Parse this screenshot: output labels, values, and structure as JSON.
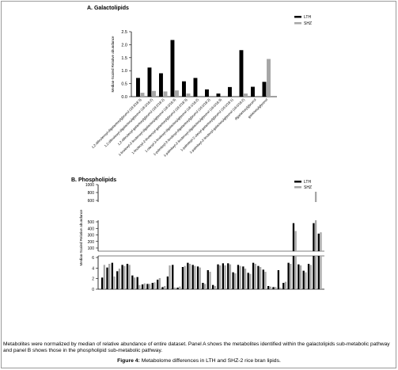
{
  "chart_data": [
    {
      "type": "bar",
      "title": "A. Galactolipids",
      "ylabel": "Median-Scaled Relative abundance",
      "ylim": [
        0,
        2.5
      ],
      "yticks": [
        "0.0",
        "0.5",
        "1.0",
        "1.5",
        "2.0",
        "2.5"
      ],
      "grid": false,
      "legend_position": "top-right",
      "categories": [
        "1,2-dilinolenoyl-digalactosylglycerol (18:3/18:3)",
        "1,2-dilinoleoyl-digalactosylglycerol (18:2/18:2)",
        "1,2-dilinoleoyl-galactosylglycerol (18:2/18:2)",
        "1-linoleoyl-2-linolenoyl-digalactosylglycerol (18:2/18:3)",
        "1-linoleoyl-2-linolenoyl-galactosylglycerol (18:2/18:3)",
        "1-oleoyl-2-linoleoyl-digalactosylglycerol (18:1/18:2)",
        "1-palmitoyl-2-linoleoyl-digalactosylglycerol (16:0/18:2)",
        "1-palmitoyl-2-linolenoyl-digalactosylglycerol (16:0/18:3)",
        "1-palmitoyl-2-oleoyl-galactosylglycerol (16:0/18:1)",
        "1-palmitoyl-2-linoleoyl-galactosylglycerol (16:0/18:2)",
        "digalactosylglycerol",
        "galactosylglycerol"
      ],
      "series": [
        {
          "name": "LTH",
          "color": "#000000",
          "values": [
            0.72,
            1.12,
            0.9,
            2.18,
            0.59,
            0.72,
            0.28,
            0.12,
            0.37,
            1.79,
            0.38,
            0.57
          ]
        },
        {
          "name": "SHZ",
          "color": "#a6a6a6",
          "values": [
            0.15,
            0.22,
            0.2,
            0.24,
            0.12,
            0.0,
            0.0,
            0.0,
            0.0,
            0.12,
            0.0,
            1.45
          ]
        }
      ],
      "extra_series_note": "",
      "trailing": {
        "LTH": 0.1,
        "SHZ": 0.48
      }
    },
    {
      "type": "bar",
      "title": "B. Phospholipids",
      "ylabel": "Median-Scaled Relative abundance",
      "ylim_segments": [
        [
          0,
          6
        ],
        [
          10,
          100
        ],
        [
          100,
          500
        ],
        [
          600,
          1000
        ]
      ],
      "yticks_upper": [
        "1000",
        "800",
        "600"
      ],
      "yticks_mid": [
        "500",
        "400",
        "300",
        "200",
        "100"
      ],
      "yticks_low": [
        "6",
        "4",
        "2",
        "0"
      ],
      "grid": false,
      "legend_position": "top-right",
      "series": [
        {
          "name": "LTH",
          "color": "#000000",
          "values": [
            2.2,
            4.1,
            5.0,
            3.4,
            4.6,
            4.8,
            2.6,
            2.3,
            0.9,
            1.0,
            1.2,
            1.8,
            0.4,
            2.4,
            4.6,
            0.3,
            4.2,
            5.0,
            4.6,
            4.3,
            1.2,
            3.6,
            0.8,
            4.7,
            4.9,
            4.9,
            3.2,
            4.6,
            4.3,
            3.1,
            5.0,
            4.4,
            3.7,
            0.6,
            0.4,
            3.6,
            1.2,
            5.0,
            480,
            4.7,
            3.5,
            4.8,
            480,
            320
          ]
        },
        {
          "name": "SHZ",
          "color": "#a6a6a6",
          "values": [
            4.6,
            4.8,
            2.4,
            3.9,
            4.4,
            4.6,
            2.2,
            0.8,
            1.1,
            1.0,
            1.3,
            2.1,
            0.6,
            4.5,
            0.3,
            0.5,
            4.4,
            4.8,
            4.4,
            4.1,
            1.0,
            3.3,
            0.6,
            4.5,
            4.5,
            4.7,
            3.0,
            4.4,
            3.9,
            2.9,
            4.8,
            4.2,
            3.3,
            0.5,
            0.4,
            0.3,
            1.4,
            4.8,
            360,
            4.5,
            3.2,
            4.6,
            820,
            340
          ]
        }
      ]
    }
  ],
  "caption": {
    "text": "Metabolites were normalized by median of relative abundance of entire dataset. Panel A shows the metabolites identified within the galactolipids sub-metabolic pathway and panel B shows those in the phospholipid sub-metabolic pathway.",
    "figure_label": "Figure 4:",
    "figure_text": "Metabolome differences in LTH and SHZ-2 rice bran lipids."
  }
}
